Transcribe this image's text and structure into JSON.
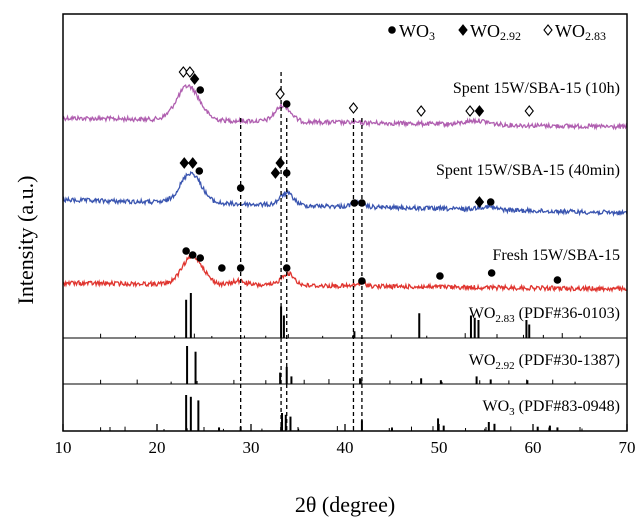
{
  "chart_data": {
    "type": "line",
    "xlabel": "2θ (degree)",
    "ylabel": "Intensity (a.u.)",
    "xlim": [
      10,
      70
    ],
    "xticks": [
      10,
      20,
      30,
      40,
      50,
      60,
      70
    ],
    "grid": false,
    "legend": {
      "placement": "top-right",
      "entries": [
        {
          "marker": "circle",
          "label": "WO",
          "sub": "3"
        },
        {
          "marker": "diamond",
          "label": "WO",
          "sub": "2.92"
        },
        {
          "marker": "open-diamond",
          "label": "WO",
          "sub": "2.83"
        }
      ]
    },
    "series": [
      {
        "name": "Spent 15W/SBA-15 (10h)",
        "color": "#b05fb0",
        "type": "xrd"
      },
      {
        "name": "Spent 15W/SBA-15 (40min)",
        "color": "#3a55b0",
        "type": "xrd"
      },
      {
        "name": "Fresh 15W/SBA-15",
        "color": "#e0352f",
        "type": "xrd"
      },
      {
        "name": "WO2.83 (PDF#36-0103)",
        "label_main": "WO",
        "label_sub": "2.83",
        "label_rest": " (PDF#36-0103)",
        "color": "#000000",
        "type": "reference",
        "peaks": [
          [
            23.1,
            0.85
          ],
          [
            23.6,
            1.0
          ],
          [
            33.2,
            0.7
          ],
          [
            33.5,
            0.5
          ],
          [
            41.0,
            0.15
          ],
          [
            47.9,
            0.55
          ],
          [
            53.4,
            0.5
          ],
          [
            53.8,
            0.45
          ],
          [
            54.2,
            0.4
          ],
          [
            59.3,
            0.4
          ],
          [
            59.6,
            0.3
          ]
        ]
      },
      {
        "name": "WO2.92 (PDF#30-1387)",
        "label_main": "WO",
        "label_sub": "2.92",
        "label_rest": " (PDF#30-1387)",
        "color": "#000000",
        "type": "reference",
        "peaks": [
          [
            23.2,
            1.0
          ],
          [
            24.1,
            0.85
          ],
          [
            33.1,
            0.3
          ],
          [
            33.8,
            0.45
          ],
          [
            34.3,
            0.2
          ],
          [
            41.6,
            0.15
          ],
          [
            48.1,
            0.15
          ],
          [
            50.2,
            0.1
          ],
          [
            54.0,
            0.2
          ],
          [
            55.5,
            0.12
          ],
          [
            59.4,
            0.1
          ]
        ]
      },
      {
        "name": "WO3 (PDF#83-0948)",
        "label_main": "WO",
        "label_sub": "3",
        "label_rest": " (PDF#83-0948)",
        "color": "#000000",
        "type": "reference",
        "peaks": [
          [
            23.1,
            1.0
          ],
          [
            23.6,
            0.95
          ],
          [
            24.4,
            0.85
          ],
          [
            26.6,
            0.1
          ],
          [
            28.9,
            0.12
          ],
          [
            33.3,
            0.5
          ],
          [
            33.7,
            0.45
          ],
          [
            34.2,
            0.4
          ],
          [
            41.8,
            0.3
          ],
          [
            45.0,
            0.08
          ],
          [
            49.9,
            0.35
          ],
          [
            50.5,
            0.15
          ],
          [
            55.3,
            0.25
          ],
          [
            55.9,
            0.2
          ],
          [
            60.5,
            0.12
          ],
          [
            61.8,
            0.15
          ],
          [
            62.6,
            0.1
          ]
        ]
      }
    ],
    "markers": [
      {
        "series": "Spent 15W/SBA-15 (10h)",
        "points": [
          {
            "x": 22.8,
            "type": "open-diamond"
          },
          {
            "x": 23.5,
            "type": "open-diamond"
          },
          {
            "x": 24.0,
            "type": "diamond"
          },
          {
            "x": 24.6,
            "type": "circle"
          },
          {
            "x": 33.1,
            "type": "open-diamond"
          },
          {
            "x": 33.8,
            "type": "circle"
          },
          {
            "x": 40.9,
            "type": "open-diamond"
          },
          {
            "x": 48.1,
            "type": "open-diamond"
          },
          {
            "x": 53.3,
            "type": "open-diamond"
          },
          {
            "x": 54.3,
            "type": "diamond"
          },
          {
            "x": 59.6,
            "type": "open-diamond"
          }
        ]
      },
      {
        "series": "Spent 15W/SBA-15 (40min)",
        "points": [
          {
            "x": 22.9,
            "type": "diamond"
          },
          {
            "x": 23.8,
            "type": "diamond"
          },
          {
            "x": 24.5,
            "type": "circle"
          },
          {
            "x": 28.9,
            "type": "circle"
          },
          {
            "x": 32.6,
            "type": "diamond"
          },
          {
            "x": 33.1,
            "type": "diamond"
          },
          {
            "x": 33.8,
            "type": "circle"
          },
          {
            "x": 41.0,
            "type": "circle"
          },
          {
            "x": 41.8,
            "type": "circle"
          },
          {
            "x": 54.3,
            "type": "diamond"
          },
          {
            "x": 55.5,
            "type": "circle"
          }
        ]
      },
      {
        "series": "Fresh 15W/SBA-15",
        "points": [
          {
            "x": 23.1,
            "type": "circle"
          },
          {
            "x": 23.8,
            "type": "circle"
          },
          {
            "x": 24.6,
            "type": "circle"
          },
          {
            "x": 26.9,
            "type": "circle"
          },
          {
            "x": 28.9,
            "type": "circle"
          },
          {
            "x": 33.8,
            "type": "circle"
          },
          {
            "x": 41.8,
            "type": "circle"
          },
          {
            "x": 50.1,
            "type": "circle"
          },
          {
            "x": 55.6,
            "type": "circle"
          },
          {
            "x": 62.6,
            "type": "circle"
          }
        ]
      }
    ],
    "reference_lines_x": [
      28.9,
      33.2,
      33.8,
      40.9,
      41.8
    ]
  }
}
